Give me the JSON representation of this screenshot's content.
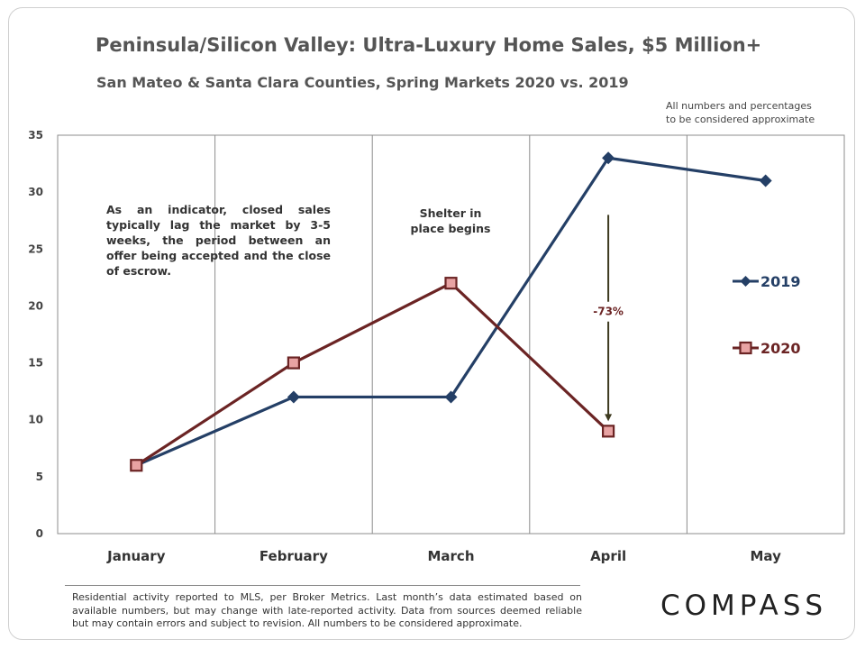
{
  "header": {
    "title": "Peninsula/Silicon Valley: Ultra-Luxury Home Sales, $5 Million+",
    "subtitle": "San Mateo & Santa Clara Counties, Spring Markets 2020 vs. 2019",
    "disclaimer_line1": "All numbers and percentages",
    "disclaimer_line2": "to be considered approximate"
  },
  "annotations": {
    "indicator": "As an indicator, closed sales typically lag the market by 3-5 weeks, the period between an offer being accepted and the close of escrow.",
    "shelter_line1": "Shelter in",
    "shelter_line2": "place begins",
    "change": "-73%"
  },
  "footer": {
    "note": "Residential activity reported to MLS, per Broker Metrics. Last month’s data estimated based on available numbers, but may change with late-reported activity. Data from sources deemed reliable but may contain errors and subject to revision. All numbers to be considered approximate.",
    "logo": "COMPASS"
  },
  "chart_data": {
    "type": "line",
    "title": "Peninsula/Silicon Valley: Ultra-Luxury Home Sales, $5 Million+",
    "subtitle": "San Mateo & Santa Clara Counties, Spring Markets 2020 vs. 2019",
    "categories": [
      "January",
      "February",
      "March",
      "April",
      "May"
    ],
    "y_ticks": [
      0,
      5,
      10,
      15,
      20,
      25,
      30,
      35
    ],
    "ylim": [
      0,
      35
    ],
    "grid": "vertical lines between categories",
    "legend_position": "right",
    "series": [
      {
        "name": "2019",
        "values": [
          6,
          12,
          12,
          33,
          31
        ],
        "color": "#243f66",
        "marker": "diamond"
      },
      {
        "name": "2020",
        "values": [
          6,
          15,
          22,
          9,
          null
        ],
        "color": "#6b2424",
        "marker": "square",
        "marker_fill": "#e8a3a3"
      }
    ],
    "annotation_change": {
      "label": "-73%",
      "category": "April",
      "from": 28,
      "to": 9,
      "color": "#3d3a1f"
    }
  }
}
